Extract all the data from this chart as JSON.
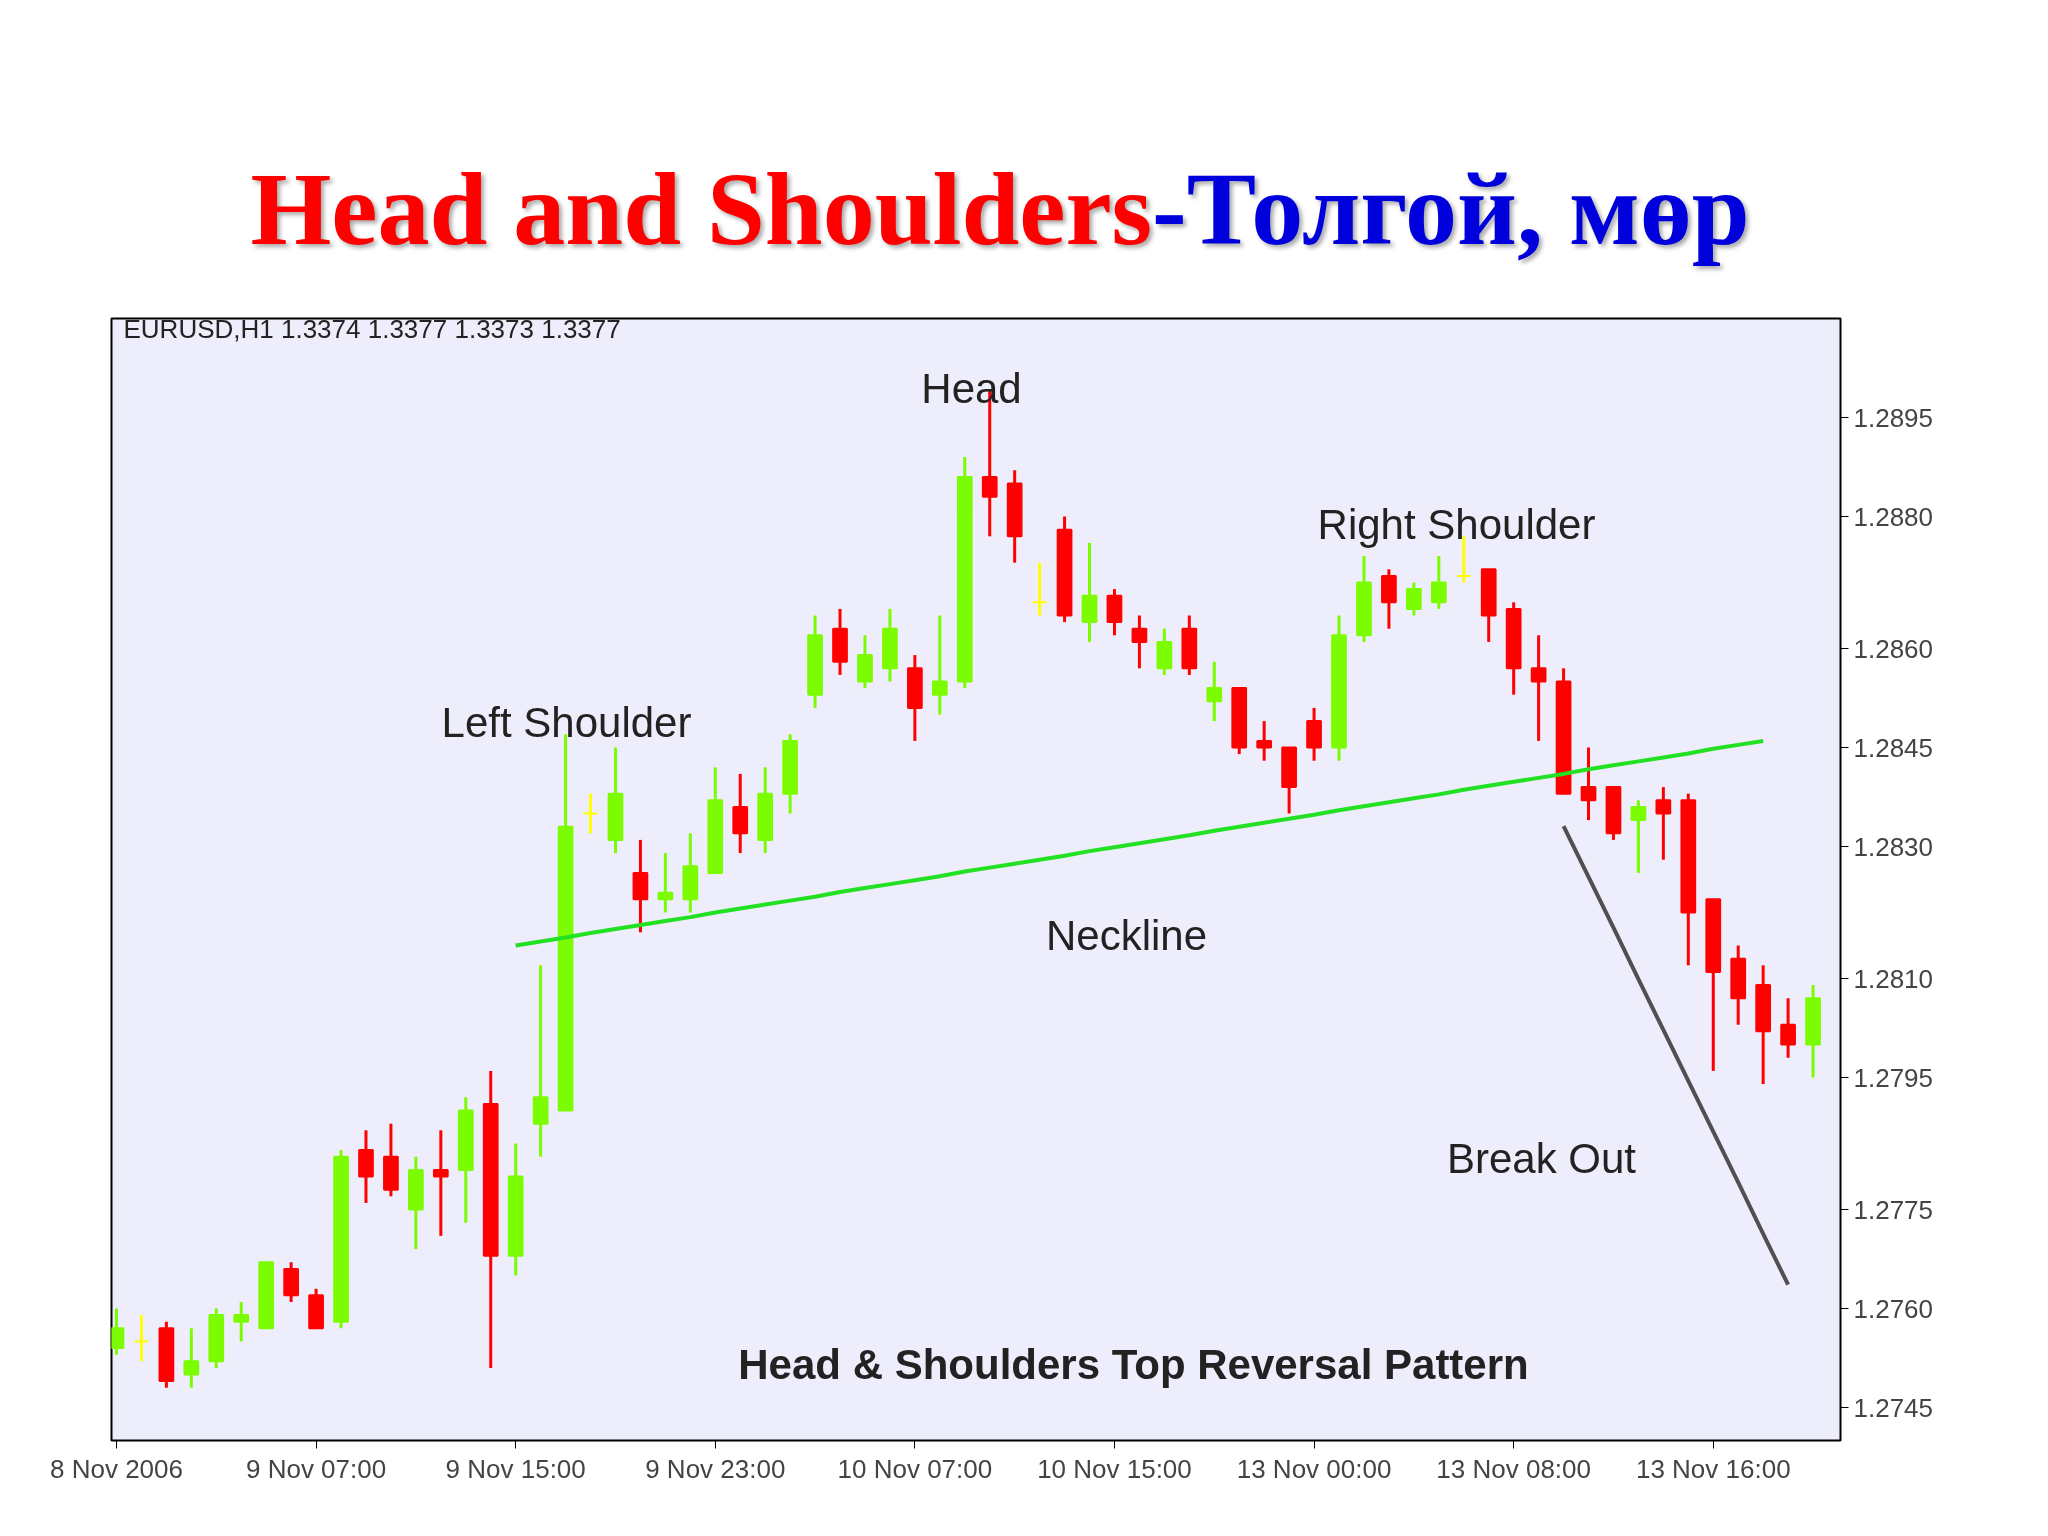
{
  "chart_data": {
    "type": "candlestick",
    "title": "Head and Shoulders-Толгой, мөр",
    "categories": [
      "8 Nov 2006",
      null,
      null,
      null,
      null,
      null,
      null,
      null,
      "9 Nov 07:00",
      null,
      null,
      null,
      null,
      null,
      null,
      null,
      "9 Nov 15:00",
      null,
      null,
      null,
      null,
      null,
      null,
      null,
      "9 Nov 23:00",
      null,
      null,
      null,
      null,
      null,
      null,
      null,
      "10 Nov 07:00",
      null,
      null,
      null,
      null,
      null,
      null,
      null,
      "10 Nov 15:00",
      null,
      null,
      null,
      null,
      null,
      null,
      null,
      "13 Nov 00:00",
      null,
      null,
      null,
      null,
      null,
      null,
      null,
      "13 Nov 08:00",
      null,
      null,
      null,
      null,
      null,
      null,
      null,
      "13 Nov 16:00",
      null,
      null,
      null,
      null
    ],
    "ohlc": [
      [
        1.2754,
        1.276,
        1.2753,
        1.2757
      ],
      [
        1.2755,
        1.2759,
        1.2752,
        1.2755
      ],
      [
        1.2757,
        1.2758,
        1.2748,
        1.2749
      ],
      [
        1.275,
        1.2757,
        1.2748,
        1.2752
      ],
      [
        1.2752,
        1.276,
        1.2751,
        1.2759
      ],
      [
        1.2758,
        1.2761,
        1.2755,
        1.2759
      ],
      [
        1.2757,
        1.2767,
        1.2757,
        1.2767
      ],
      [
        1.2766,
        1.2767,
        1.2761,
        1.2762
      ],
      [
        1.2762,
        1.2763,
        1.2757,
        1.2757
      ],
      [
        1.2758,
        1.2784,
        1.2757,
        1.2783
      ],
      [
        1.2784,
        1.2787,
        1.2776,
        1.278
      ],
      [
        1.2783,
        1.2788,
        1.2777,
        1.2778
      ],
      [
        1.2775,
        1.2783,
        1.2769,
        1.2781
      ],
      [
        1.2781,
        1.2787,
        1.2771,
        1.278
      ],
      [
        1.2781,
        1.2792,
        1.2773,
        1.279
      ],
      [
        1.2791,
        1.2796,
        1.2751,
        1.2768
      ],
      [
        1.2768,
        1.2785,
        1.2765,
        1.278
      ],
      [
        1.2788,
        1.2812,
        1.2783,
        1.2792
      ],
      [
        1.279,
        1.2847,
        1.279,
        1.2833
      ],
      [
        1.2835,
        1.2838,
        1.2832,
        1.2835
      ],
      [
        1.2831,
        1.2845,
        1.2829,
        1.2838
      ],
      [
        1.2826,
        1.2831,
        1.2817,
        1.2822
      ],
      [
        1.2822,
        1.2829,
        1.282,
        1.2823
      ],
      [
        1.2822,
        1.2832,
        1.282,
        1.2827
      ],
      [
        1.2826,
        1.2842,
        1.2826,
        1.2837
      ],
      [
        1.2836,
        1.2841,
        1.2829,
        1.2832
      ],
      [
        1.2831,
        1.2842,
        1.2829,
        1.2838
      ],
      [
        1.2838,
        1.2847,
        1.2835,
        1.2846
      ],
      [
        1.2853,
        1.2865,
        1.2851,
        1.2862
      ],
      [
        1.2863,
        1.2866,
        1.2856,
        1.2858
      ],
      [
        1.2855,
        1.2862,
        1.2854,
        1.2859
      ],
      [
        1.2857,
        1.2866,
        1.2855,
        1.2863
      ],
      [
        1.2857,
        1.2859,
        1.2846,
        1.2851
      ],
      [
        1.2853,
        1.2865,
        1.285,
        1.2855
      ],
      [
        1.2855,
        1.2889,
        1.2854,
        1.2886
      ],
      [
        1.2886,
        1.2899,
        1.2877,
        1.2883
      ],
      [
        1.2885,
        1.2887,
        1.2873,
        1.2877
      ],
      [
        1.2867,
        1.2873,
        1.2865,
        1.2867
      ],
      [
        1.2878,
        1.288,
        1.2864,
        1.2865
      ],
      [
        1.2864,
        1.2876,
        1.2861,
        1.2868
      ],
      [
        1.2868,
        1.2869,
        1.2862,
        1.2864
      ],
      [
        1.2863,
        1.2865,
        1.2857,
        1.2861
      ],
      [
        1.2857,
        1.2863,
        1.2856,
        1.2861
      ],
      [
        1.2863,
        1.2865,
        1.2856,
        1.2857
      ],
      [
        1.2852,
        1.2858,
        1.2849,
        1.2854
      ],
      [
        1.2854,
        1.2854,
        1.2844,
        1.2845
      ],
      [
        1.2846,
        1.2849,
        1.2843,
        1.2845
      ],
      [
        1.2845,
        1.2845,
        1.2835,
        1.2839
      ],
      [
        1.2849,
        1.2851,
        1.2843,
        1.2845
      ],
      [
        1.2845,
        1.2865,
        1.2843,
        1.2862
      ],
      [
        1.2862,
        1.2874,
        1.2861,
        1.287
      ],
      [
        1.2871,
        1.2872,
        1.2863,
        1.2867
      ],
      [
        1.2866,
        1.287,
        1.2865,
        1.2869
      ],
      [
        1.2867,
        1.2874,
        1.2866,
        1.287
      ],
      [
        1.2871,
        1.2877,
        1.287,
        1.2871
      ],
      [
        1.2872,
        1.2872,
        1.2861,
        1.2865
      ],
      [
        1.2866,
        1.2867,
        1.2853,
        1.2857
      ],
      [
        1.2857,
        1.2862,
        1.2846,
        1.2855
      ],
      [
        1.2855,
        1.2857,
        1.2838,
        1.2838
      ],
      [
        1.2839,
        1.2845,
        1.2834,
        1.2837
      ],
      [
        1.2839,
        1.2839,
        1.2831,
        1.2832
      ],
      [
        1.2834,
        1.2837,
        1.2826,
        1.2836
      ],
      [
        1.2837,
        1.2839,
        1.2828,
        1.2835
      ],
      [
        1.2837,
        1.2838,
        1.2812,
        1.282
      ],
      [
        1.2822,
        1.2822,
        1.2796,
        1.2811
      ],
      [
        1.2813,
        1.2815,
        1.2803,
        1.2807
      ],
      [
        1.2809,
        1.2812,
        1.2794,
        1.2802
      ],
      [
        1.2803,
        1.2807,
        1.2798,
        1.28
      ],
      [
        1.28,
        1.2809,
        1.2795,
        1.2807
      ]
    ],
    "colors": [
      "#7cfc00",
      "#ffff00",
      "#ff0000",
      "#7cfc00",
      "#7cfc00",
      "#7cfc00",
      "#7cfc00",
      "#ff0000",
      "#ff0000",
      "#7cfc00",
      "#ff0000",
      "#ff0000",
      "#7cfc00",
      "#ff0000",
      "#7cfc00",
      "#ff0000",
      "#7cfc00",
      "#7cfc00",
      "#7cfc00",
      "#ffff00",
      "#7cfc00",
      "#ff0000",
      "#7cfc00",
      "#7cfc00",
      "#7cfc00",
      "#ff0000",
      "#7cfc00",
      "#7cfc00",
      "#7cfc00",
      "#ff0000",
      "#7cfc00",
      "#7cfc00",
      "#ff0000",
      "#7cfc00",
      "#7cfc00",
      "#ff0000",
      "#ff0000",
      "#ffff00",
      "#ff0000",
      "#7cfc00",
      "#ff0000",
      "#ff0000",
      "#7cfc00",
      "#ff0000",
      "#7cfc00",
      "#ff0000",
      "#ff0000",
      "#ff0000",
      "#ff0000",
      "#7cfc00",
      "#7cfc00",
      "#ff0000",
      "#7cfc00",
      "#7cfc00",
      "#ffff00",
      "#ff0000",
      "#ff0000",
      "#ff0000",
      "#ff0000",
      "#ff0000",
      "#ff0000",
      "#7cfc00",
      "#ff0000",
      "#ff0000",
      "#ff0000",
      "#ff0000",
      "#ff0000",
      "#ff0000",
      "#7cfc00"
    ],
    "series": [
      {
        "type": "line",
        "values": [
          null,
          null,
          null,
          null,
          null,
          null,
          null,
          null,
          null,
          null,
          null,
          null,
          null,
          null,
          null,
          null,
          1.2815,
          1.28156,
          1.28162,
          1.28169,
          1.28175,
          1.28181,
          1.28187,
          1.28193,
          1.282,
          1.28206,
          1.28212,
          1.28218,
          1.28224,
          1.28231,
          1.28237,
          1.28243,
          1.28249,
          1.28255,
          1.28262,
          1.28268,
          1.28274,
          1.2828,
          1.28286,
          1.28293,
          1.28299,
          1.28305,
          1.28311,
          1.28317,
          1.28324,
          1.2833,
          1.28336,
          1.28342,
          1.28348,
          1.28355,
          1.28361,
          1.28367,
          1.28373,
          1.28379,
          1.28386,
          1.28392,
          1.28398,
          1.28404,
          1.2841,
          1.28417,
          1.28423,
          1.28429,
          1.28435,
          1.28441,
          1.28448,
          1.28454,
          1.2846,
          null,
          null
        ],
        "color": "#22e022"
      },
      {
        "type": "line",
        "values": [
          null,
          null,
          null,
          null,
          null,
          null,
          null,
          null,
          null,
          null,
          null,
          null,
          null,
          null,
          null,
          null,
          null,
          null,
          null,
          null,
          null,
          null,
          null,
          null,
          null,
          null,
          null,
          null,
          null,
          null,
          null,
          null,
          null,
          null,
          null,
          null,
          null,
          null,
          null,
          null,
          null,
          null,
          null,
          null,
          null,
          null,
          null,
          null,
          null,
          null,
          null,
          null,
          null,
          null,
          null,
          null,
          null,
          null,
          1.28331,
          1.28254,
          1.28177,
          1.28099,
          1.28022,
          1.27945,
          1.27868,
          1.27791,
          1.27713,
          1.27636,
          null
        ],
        "color": "#505050"
      }
    ],
    "ylim": [
      1.274,
      1.291
    ],
    "yticks": [
      {
        "value": 1.2895,
        "label": "1.2895"
      },
      {
        "value": 1.288,
        "label": "1.2880"
      },
      {
        "value": 1.286,
        "label": "1.2860"
      },
      {
        "value": 1.2845,
        "label": "1.2845"
      },
      {
        "value": 1.283,
        "label": "1.2830"
      },
      {
        "value": 1.281,
        "label": "1.2810"
      },
      {
        "value": 1.2795,
        "label": "1.2795"
      },
      {
        "value": 1.2775,
        "label": "1.2775"
      },
      {
        "value": 1.276,
        "label": "1.2760"
      },
      {
        "value": 1.2745,
        "label": "1.2745"
      }
    ],
    "annotations": [
      "EURUSD,H1  1.3374 1.3377 1.3373 1.3377",
      "Head",
      "Left Shoulder",
      "Right Shoulder",
      "Neckline",
      "Break Out",
      "Head & Shoulders Top Reversal Pattern"
    ]
  }
}
